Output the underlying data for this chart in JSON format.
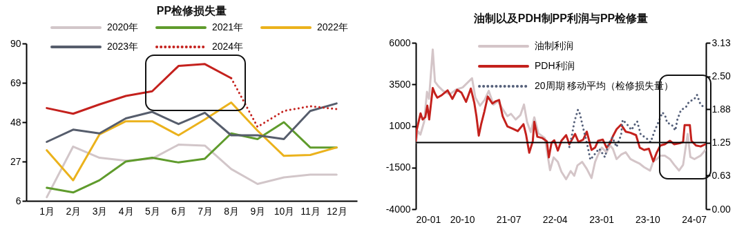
{
  "chart_data": [
    {
      "type": "line",
      "title": "PP检修损失量",
      "categories": [
        "1月",
        "2月",
        "3月",
        "4月",
        "5月",
        "6月",
        "7月",
        "8月",
        "9月",
        "10月",
        "11月",
        "12月"
      ],
      "ylim": [
        6,
        90
      ],
      "yticks": [
        6,
        27,
        48,
        69,
        90
      ],
      "legend": "top",
      "series": [
        {
          "name": "2020年",
          "color": "#d2c6c9",
          "values": [
            8,
            35,
            29,
            27.5,
            28.5,
            36,
            35.5,
            23,
            15,
            18.5,
            20,
            20
          ]
        },
        {
          "name": "2021年",
          "color": "#5f9b2c",
          "values": [
            13,
            10.5,
            17,
            27,
            29,
            26.5,
            28.5,
            42,
            39,
            48,
            34.5,
            34.5
          ]
        },
        {
          "name": "2022年",
          "color": "#ebb21c",
          "values": [
            33,
            17,
            41.5,
            48.5,
            48.5,
            41,
            49.5,
            58.5,
            43.5,
            30,
            30.5,
            34.5
          ]
        },
        {
          "name": "2023年",
          "color": "#565d6c",
          "values": [
            37.5,
            44,
            42,
            50,
            53.5,
            47,
            53,
            41,
            41,
            39,
            54,
            58
          ]
        },
        {
          "color": "#c4211d",
          "values": [
            55.5,
            52.5,
            57.5,
            62,
            64.5,
            78,
            79,
            71.5,
            null,
            null,
            null,
            null
          ]
        },
        {
          "name": "2024年",
          "color": "#c4211d",
          "line_style": "dotted",
          "values": [
            null,
            null,
            null,
            null,
            null,
            null,
            null,
            71.5,
            45.5,
            54,
            56.5,
            55
          ]
        }
      ]
    },
    {
      "type": "line",
      "title": "油制以及PDH制PP利润与PP检修量",
      "xlim": [
        "2020-01-01",
        "2024-09-10"
      ],
      "xticks": [
        {
          "value": "2020-01",
          "label": "20-01"
        },
        {
          "value": "2020-10",
          "label": "20-10"
        },
        {
          "value": "2021-07",
          "label": "21-07"
        },
        {
          "value": "2022-04",
          "label": "22-04"
        },
        {
          "value": "2023-01",
          "label": "23-01"
        },
        {
          "value": "2023-10",
          "label": "23-10"
        },
        {
          "value": "2024-07",
          "label": "24-07"
        }
      ],
      "ylim": [
        -4000,
        6000
      ],
      "yticks": [
        -4000,
        -1500,
        1000,
        3500,
        6000
      ],
      "y2lim": [
        0,
        3.13
      ],
      "y2ticks": [
        {
          "value": 0,
          "label": "0.00"
        },
        0.63,
        1.25,
        1.88,
        {
          "value": 2.5,
          "label": "2.50"
        },
        3.13
      ],
      "legend": "top",
      "ref_lines": [
        {
          "axis": "y",
          "value": 0,
          "color": "#000000"
        }
      ],
      "series": [
        {
          "name": "油制利润",
          "color": "#d4c5c8",
          "x": [
            "2020-01-01",
            "2020-01-13",
            "2020-01-28",
            "2020-02-19",
            "2020-03-07",
            "2020-03-19",
            "2020-04-10",
            "2020-04-23",
            "2020-05-13",
            "2020-06-10",
            "2020-07-19",
            "2020-08-25",
            "2020-10-04",
            "2020-11-01",
            "2020-11-28",
            "2020-12-18",
            "2021-01-14",
            "2021-02-10",
            "2021-03-07",
            "2021-04-04",
            "2021-05-01",
            "2021-05-28",
            "2021-06-25",
            "2021-07-16",
            "2021-08-13",
            "2021-09-10",
            "2021-10-01",
            "2021-10-19",
            "2021-11-10",
            "2021-12-01",
            "2021-12-25",
            "2022-02-01",
            "2022-03-04",
            "2022-03-25",
            "2022-04-19",
            "2022-05-10",
            "2022-06-07",
            "2022-07-04",
            "2022-07-25",
            "2022-08-13",
            "2022-09-10",
            "2022-10-07",
            "2022-11-04",
            "2022-11-25",
            "2022-12-13",
            "2023-01-04",
            "2023-02-01",
            "2023-02-22",
            "2023-03-10",
            "2023-04-01",
            "2023-04-28",
            "2023-05-25",
            "2023-06-22",
            "2023-07-19",
            "2023-08-16",
            "2023-09-11",
            "2023-10-16",
            "2023-11-04",
            "2023-11-25",
            "2023-12-16",
            "2024-01-11",
            "2024-02-10",
            "2024-03-07",
            "2024-04-04",
            "2024-04-28",
            "2024-05-25",
            "2024-06-10",
            "2024-07-04",
            "2024-08-10",
            "2024-09-07"
          ],
          "values": [
            0,
            690,
            480,
            1250,
            3050,
            2630,
            5600,
            3660,
            3390,
            3110,
            2900,
            3180,
            3320,
            3600,
            3870,
            2700,
            2220,
            2560,
            3110,
            2280,
            2490,
            2010,
            1590,
            1730,
            1390,
            1660,
            2290,
            1250,
            630,
            1520,
            560,
            280,
            -1660,
            -890,
            -1160,
            -1750,
            -2200,
            -1710,
            -1990,
            -1370,
            -1160,
            -1580,
            -2130,
            -1160,
            -720,
            -300,
            -580,
            -170,
            -370,
            -990,
            -720,
            -580,
            -990,
            -1130,
            -1270,
            -1480,
            -1680,
            -1130,
            -990,
            -780,
            -780,
            -990,
            -1340,
            -1680,
            -1340,
            520,
            -860,
            -990,
            -780,
            -440
          ]
        },
        {
          "name": "PDH利润",
          "color": "#c4211d",
          "x": [
            "2020-01-01",
            "2020-01-06",
            "2020-01-29",
            "2020-02-10",
            "2020-02-26",
            "2020-03-09",
            "2020-03-20",
            "2020-04-10",
            "2020-04-23",
            "2020-05-07",
            "2020-06-03",
            "2020-07-07",
            "2020-08-04",
            "2020-09-01",
            "2020-09-27",
            "2020-10-24",
            "2020-11-21",
            "2020-12-11",
            "2020-12-24",
            "2021-01-07",
            "2021-01-21",
            "2021-02-09",
            "2021-03-01",
            "2021-03-28",
            "2021-04-18",
            "2021-05-07",
            "2021-05-28",
            "2021-06-25",
            "2021-07-28",
            "2021-08-25",
            "2021-09-28",
            "2021-10-13",
            "2021-11-01",
            "2021-11-22",
            "2021-12-01",
            "2021-12-19",
            "2022-01-16",
            "2022-02-13",
            "2022-02-25",
            "2022-03-13",
            "2022-03-29",
            "2022-04-19",
            "2022-05-10",
            "2022-06-07",
            "2022-06-26",
            "2022-07-30",
            "2022-08-19",
            "2022-09-16",
            "2022-10-07",
            "2022-11-04",
            "2022-11-25",
            "2022-12-13",
            "2023-01-10",
            "2023-02-01",
            "2023-02-22",
            "2023-03-10",
            "2023-04-01",
            "2023-04-28",
            "2023-05-25",
            "2023-06-22",
            "2023-07-25",
            "2023-08-16",
            "2023-09-11",
            "2023-10-09",
            "2023-11-04",
            "2023-11-25",
            "2023-12-16",
            "2024-01-11",
            "2024-02-10",
            "2024-03-07",
            "2024-04-10",
            "2024-04-28",
            "2024-05-07",
            "2024-06-07",
            "2024-06-16",
            "2024-07-13",
            "2024-08-10",
            "2024-09-07"
          ],
          "values": [
            100,
            750,
            1760,
            1390,
            1530,
            2220,
            1390,
            3280,
            2950,
            2700,
            2860,
            3140,
            2630,
            3180,
            3000,
            2450,
            3250,
            2420,
            1590,
            420,
            1110,
            1870,
            2770,
            2350,
            2490,
            2560,
            1590,
            970,
            830,
            690,
            1110,
            490,
            -610,
            80,
            1250,
            350,
            280,
            80,
            -890,
            0,
            140,
            -480,
            110,
            450,
            -100,
            520,
            40,
            180,
            660,
            -440,
            -300,
            110,
            180,
            -300,
            -30,
            380,
            800,
            1080,
            660,
            590,
            450,
            -300,
            -440,
            -370,
            -1130,
            -580,
            -170,
            -100,
            110,
            -100,
            -30,
            40,
            1050,
            1050,
            110,
            -170,
            -230,
            -100
          ]
        },
        {
          "name": "20周期  移动平均（检修损失量）",
          "color": "#55607a",
          "axis": "y2",
          "line_style": "dotted",
          "x": [
            "2022-06-26",
            "2022-07-10",
            "2022-07-26",
            "2022-08-16",
            "2022-08-28",
            "2022-09-10",
            "2022-09-28",
            "2022-10-13",
            "2022-10-28",
            "2022-11-22",
            "2022-12-19",
            "2023-01-22",
            "2023-02-13",
            "2023-03-07",
            "2023-04-01",
            "2023-04-28",
            "2023-05-07",
            "2023-06-01",
            "2023-06-28",
            "2023-07-19",
            "2023-08-01",
            "2023-08-22",
            "2023-09-19",
            "2023-10-19",
            "2023-11-13",
            "2023-12-10",
            "2023-12-28",
            "2024-01-13",
            "2024-01-25",
            "2024-02-19",
            "2024-03-13",
            "2024-03-25",
            "2024-04-16",
            "2024-05-13",
            "2024-06-04",
            "2024-07-01",
            "2024-07-19",
            "2024-08-10",
            "2024-09-07"
          ],
          "values": [
            1.17,
            1.37,
            1.65,
            1.87,
            1.79,
            1.6,
            1.37,
            1.17,
            0.93,
            1.03,
            1.14,
            0.98,
            1.23,
            1.35,
            1.17,
            1.4,
            1.68,
            1.6,
            1.49,
            1.6,
            1.65,
            1.4,
            1.35,
            1.26,
            1.48,
            1.68,
            1.82,
            1.76,
            1.62,
            1.6,
            1.48,
            1.68,
            1.87,
            1.91,
            2.03,
            2.06,
            2.15,
            1.96,
            1.91
          ]
        }
      ]
    }
  ]
}
